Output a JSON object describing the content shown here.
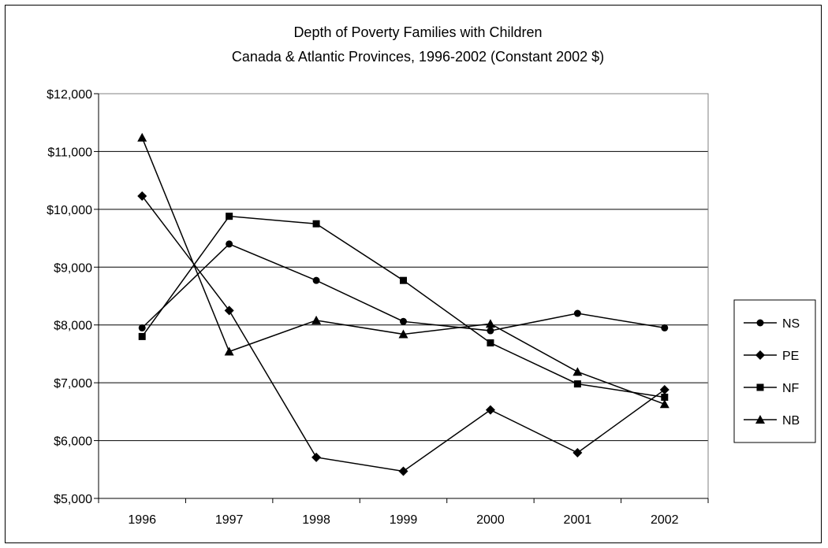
{
  "chart_data": {
    "type": "line",
    "title": "Depth of Poverty Families with Children",
    "subtitle": "Canada & Atlantic Provinces, 1996-2002 (Constant 2002 $)",
    "xlabel": "",
    "ylabel": "",
    "categories": [
      "1996",
      "1997",
      "1998",
      "1999",
      "2000",
      "2001",
      "2002"
    ],
    "ylim": [
      5000,
      12000
    ],
    "y_ticks": [
      "$5,000",
      "$6,000",
      "$7,000",
      "$8,000",
      "$9,000",
      "$10,000",
      "$11,000",
      "$12,000"
    ],
    "y_tick_values": [
      5000,
      6000,
      7000,
      8000,
      9000,
      10000,
      11000,
      12000
    ],
    "grid": "horizontal",
    "legend_position": "right",
    "series": [
      {
        "name": "NS",
        "marker": "circle",
        "values": [
          7950,
          9400,
          8770,
          8060,
          7900,
          8200,
          7950
        ]
      },
      {
        "name": "PE",
        "marker": "diamond",
        "values": [
          10230,
          8250,
          5710,
          5470,
          6530,
          5790,
          6880
        ]
      },
      {
        "name": "NF",
        "marker": "square",
        "values": [
          7800,
          9880,
          9750,
          8770,
          7690,
          6980,
          6750
        ]
      },
      {
        "name": "NB",
        "marker": "triangle",
        "values": [
          11240,
          7540,
          8080,
          7840,
          8020,
          7190,
          6630
        ]
      }
    ]
  }
}
